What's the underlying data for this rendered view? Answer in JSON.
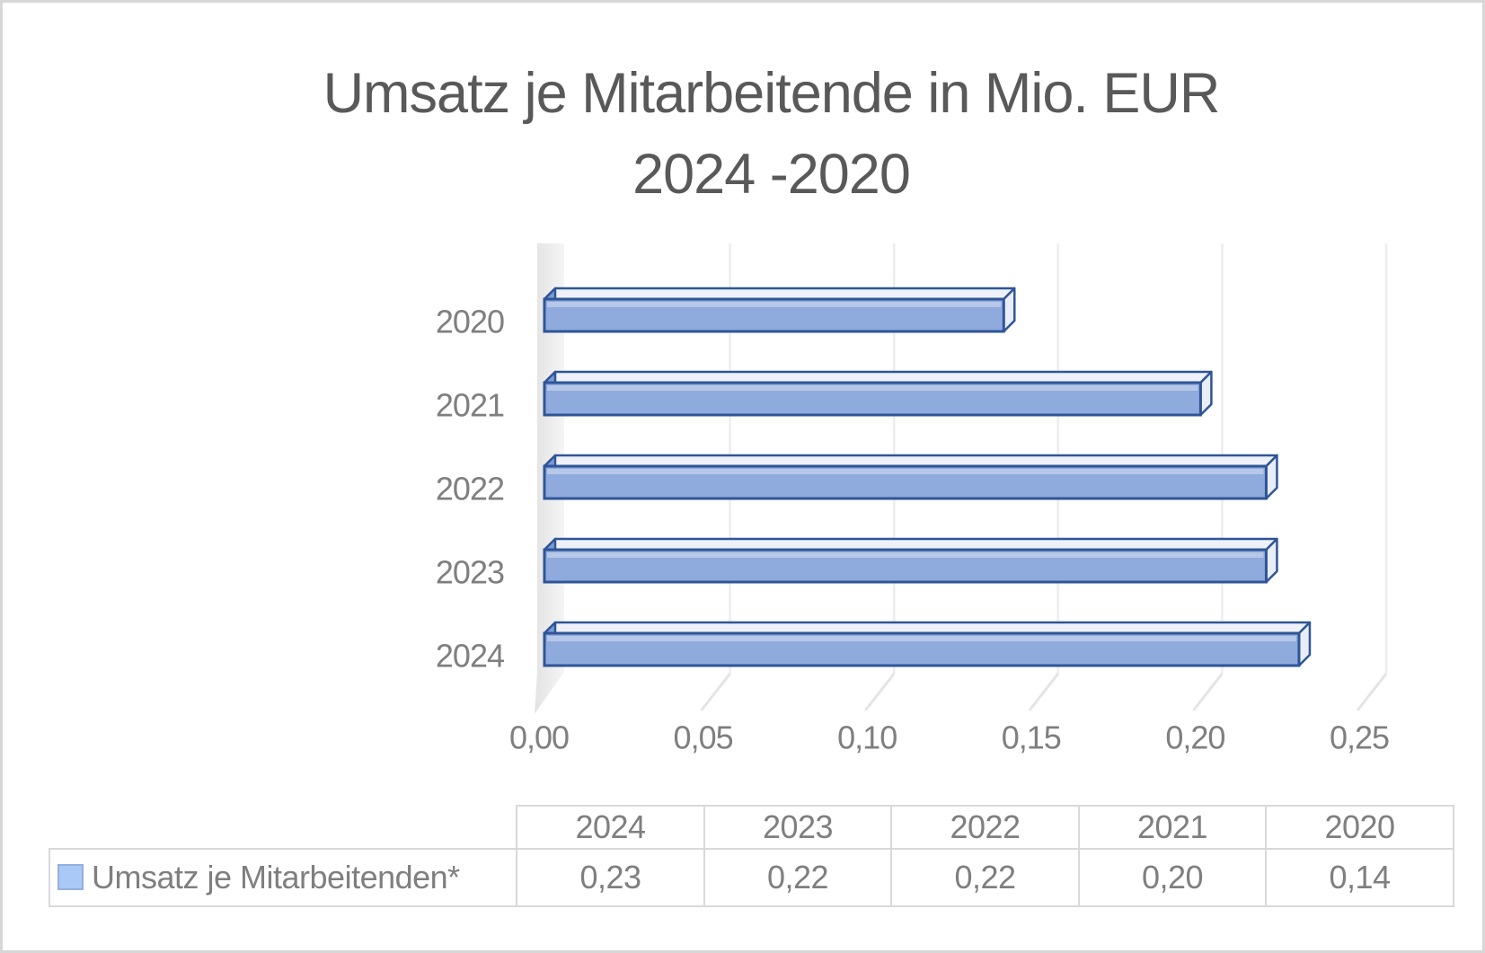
{
  "title": {
    "line1": "Umsatz je Mitarbeitende in Mio. EUR",
    "line2": "2024 -2020"
  },
  "chart_data": {
    "type": "bar",
    "orientation": "horizontal",
    "style": "3d",
    "title": "Umsatz je Mitarbeitende in Mio. EUR 2024 -2020",
    "categories": [
      "2020",
      "2021",
      "2022",
      "2023",
      "2024"
    ],
    "series": [
      {
        "name": "Umsatz je Mitarbeitenden*",
        "values": [
          0.14,
          0.2,
          0.22,
          0.22,
          0.23
        ]
      }
    ],
    "x_axis": {
      "min": 0,
      "max": 0.25,
      "step": 0.05,
      "tick_labels": [
        "0,00",
        "0,05",
        "0,10",
        "0,15",
        "0,20",
        "0,25"
      ]
    },
    "grid": true,
    "legend_position": "bottom-table"
  },
  "table": {
    "headers": [
      "2024",
      "2023",
      "2022",
      "2021",
      "2020"
    ],
    "rows": [
      {
        "label": "Umsatz je Mitarbeitenden*",
        "values": [
          "0,23",
          "0,22",
          "0,22",
          "0,20",
          "0,14"
        ]
      }
    ]
  },
  "colors": {
    "bar_fill": "#8FAADC",
    "bar_stroke": "#2F5597",
    "bar_top_face": "#EEF1F9",
    "bar_end_face": "#E9EDF7",
    "bar_left_face": "#7D9CD3",
    "gridline": "#EDEDED",
    "floor_hook": "#E4E4E4",
    "wall_light": "#F5F5F5",
    "wall_dark": "#E3E3E3",
    "axis_text": "#7F7F7F",
    "title_text": "#595959",
    "table_border": "#D9D9D9",
    "legend_swatch_fill": "#ABC9F7",
    "legend_swatch_stroke": "#95AFDB"
  },
  "icons": {
    "legend_swatch": "series-color-square"
  }
}
